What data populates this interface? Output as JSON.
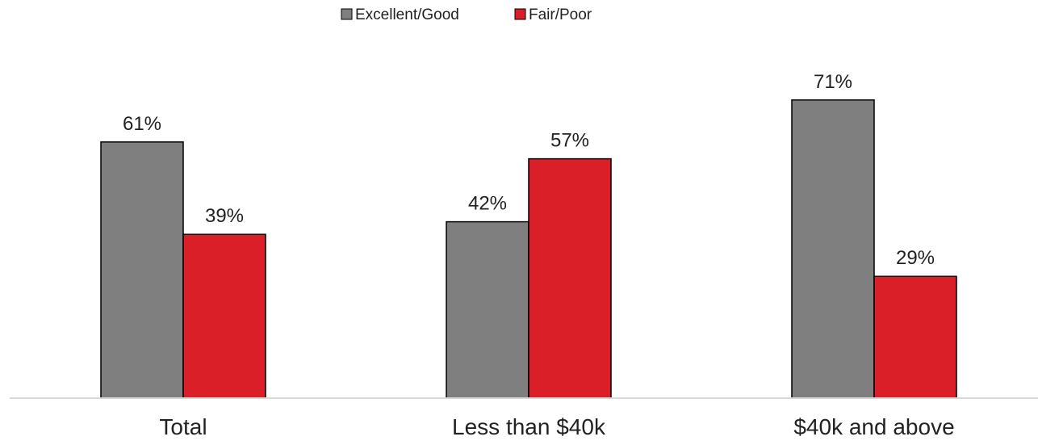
{
  "chart_data": {
    "type": "bar",
    "title": "",
    "xlabel": "",
    "ylabel": "",
    "categories": [
      "Total",
      "Less than $40k",
      "$40k and above"
    ],
    "series": [
      {
        "name": "Excellent/Good",
        "values": [
          61,
          42,
          71
        ],
        "labels": [
          "61%",
          "42%",
          "71%"
        ],
        "color": "#7f7f7f"
      },
      {
        "name": "Fair/Poor",
        "values": [
          39,
          57,
          29
        ],
        "labels": [
          "39%",
          "57%",
          "29%"
        ],
        "color": "#da1f28"
      }
    ],
    "ylim": [
      0,
      100
    ],
    "grid": false,
    "legend_position": "top-center"
  }
}
